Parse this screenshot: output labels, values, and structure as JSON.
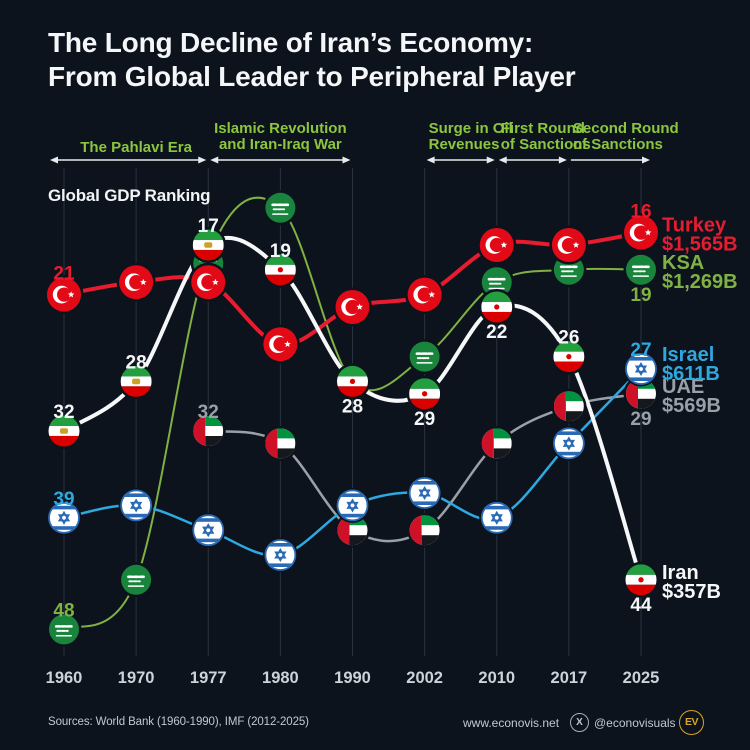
{
  "title": {
    "line1": "The Long Decline of Iran’s Economy:",
    "line2": "From Global Leader to Peripheral Player"
  },
  "chart_label": "Global GDP Ranking",
  "colors": {
    "background": "#0c131d",
    "grid": "#2a3340",
    "era_green": "#8cc63e",
    "arrow_white": "#e8ebee",
    "year_label": "#ccd3da",
    "title_white": "#f4f6f8",
    "turkey": "#e81c2e",
    "ksa": "#7fb143",
    "israel": "#2fa8e0",
    "uae": "#9aa0a8",
    "iran": "#f5f7f8",
    "footer_text": "#c2c8cf",
    "logo_gold": "#d9a427"
  },
  "eras": [
    {
      "line1": "The Pahlavi Era",
      "line2": "",
      "from_year": 1960,
      "to_year": 1977,
      "arrows": "both",
      "align": "center"
    },
    {
      "line1": "Islamic Revolution",
      "line2": "and Iran-Iraq War",
      "from_year": 1977,
      "to_year": 1990,
      "arrows": "both",
      "align": "center"
    },
    {
      "line1": "Surge in Oil",
      "line2": "Revenues",
      "from_year": 2002,
      "to_year": 2010,
      "arrows": "both",
      "align": "left"
    },
    {
      "line1": "First Round",
      "line2": "of Sanctions",
      "from_year": 2010,
      "to_year": 2017,
      "arrows": "both",
      "align": "left"
    },
    {
      "line1": "Second Round",
      "line2": "of Sanctions",
      "from_year": 2017,
      "to_year": 2025,
      "arrows": "right",
      "align": "left"
    }
  ],
  "chart_data": {
    "type": "line",
    "title": "The Long Decline of Iran's Economy: From Global Leader to Peripheral Player",
    "x": [
      1960,
      1970,
      1977,
      1980,
      1990,
      2002,
      2010,
      2017,
      2025
    ],
    "y_axis": {
      "label": "Global GDP Ranking",
      "inverted": true,
      "range": [
        14,
        48
      ]
    },
    "grid": "vertical-only",
    "legend_position": "right-of-last-point",
    "series": [
      {
        "name": "UAE",
        "flag": "uae",
        "color": "#9aa0a8",
        "width": 2.5,
        "values": [
          null,
          null,
          32,
          33,
          40,
          40,
          33,
          30,
          29
        ],
        "labels": [
          {
            "year": 1977,
            "text": "32",
            "pos": "above"
          },
          {
            "year": 2025,
            "text": "29",
            "pos": "below"
          }
        ],
        "legend": {
          "label": "UAE",
          "value": "$569B",
          "dy": 0
        }
      },
      {
        "name": "KSA",
        "flag": "ksa",
        "color": "#7fb143",
        "width": 2,
        "values": [
          48,
          44,
          18,
          14,
          28,
          26,
          20,
          19,
          19
        ],
        "labels": [
          {
            "year": 1960,
            "text": "48",
            "pos": "above"
          },
          {
            "year": 2025,
            "text": "19",
            "pos": "below"
          }
        ],
        "legend": {
          "label": "KSA",
          "value": "$1,269B",
          "dy": 0
        }
      },
      {
        "name": "Israel",
        "flag": "israel",
        "color": "#2fa8e0",
        "width": 2.5,
        "values": [
          39,
          38,
          40,
          42,
          38,
          37,
          39,
          33,
          27
        ],
        "labels": [
          {
            "year": 1960,
            "text": "39",
            "pos": "above"
          },
          {
            "year": 2025,
            "text": "27",
            "pos": "above"
          }
        ],
        "legend": {
          "label": "Israel",
          "value": "$611B",
          "dy": -7
        }
      },
      {
        "name": "Turkey",
        "flag": "turkey",
        "color": "#e81c2e",
        "width": 4,
        "values": [
          21,
          20,
          20,
          25,
          22,
          21,
          17,
          17,
          16
        ],
        "labels": [
          {
            "year": 1960,
            "text": "21",
            "pos": "above"
          },
          {
            "year": 2025,
            "text": "16",
            "pos": "above"
          }
        ],
        "legend": {
          "label": "Turkey",
          "value": "$1,565B",
          "dy": 0
        }
      },
      {
        "name": "Iran",
        "flag": "iran",
        "color": "#f5f7f8",
        "width": 4,
        "values": [
          32,
          28,
          17,
          19,
          28,
          29,
          22,
          26,
          44
        ],
        "labels": [
          {
            "year": 1960,
            "text": "32",
            "pos": "above"
          },
          {
            "year": 1970,
            "text": "28",
            "pos": "above"
          },
          {
            "year": 1977,
            "text": "17",
            "pos": "above"
          },
          {
            "year": 1980,
            "text": "19",
            "pos": "above"
          },
          {
            "year": 1990,
            "text": "28",
            "pos": "below"
          },
          {
            "year": 2002,
            "text": "29",
            "pos": "below"
          },
          {
            "year": 2010,
            "text": "22",
            "pos": "below"
          },
          {
            "year": 2017,
            "text": "26",
            "pos": "above"
          },
          {
            "year": 2025,
            "text": "44",
            "pos": "below"
          }
        ],
        "legend": {
          "label": "Iran",
          "value": "$357B",
          "dy": 0
        }
      }
    ]
  },
  "footer": {
    "sources": "Sources: World Bank (1960-1990), IMF (2012-2025)",
    "website": "www.econovis.net",
    "x_icon": "X",
    "x_handle": "@econovisuals",
    "logo_text": "EV"
  }
}
